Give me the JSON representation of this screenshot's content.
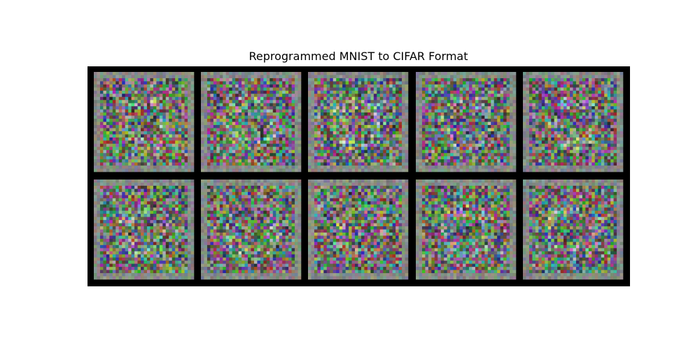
{
  "title": "Reprogrammed MNIST to CIFAR Format"
}
